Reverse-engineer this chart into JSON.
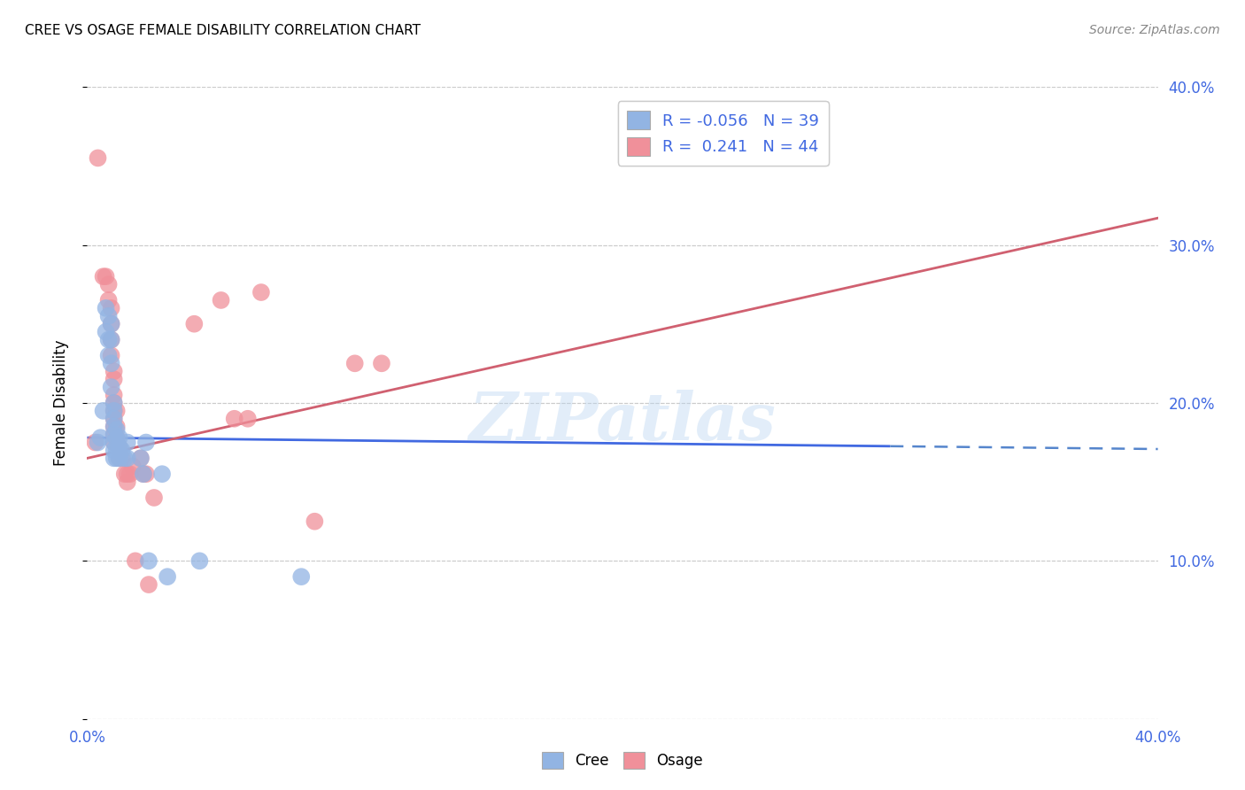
{
  "title": "CREE VS OSAGE FEMALE DISABILITY CORRELATION CHART",
  "source": "Source: ZipAtlas.com",
  "ylabel": "Female Disability",
  "xlim": [
    0.0,
    0.4
  ],
  "ylim": [
    0.0,
    0.4
  ],
  "xtick_vals": [
    0.0,
    0.1,
    0.2,
    0.3,
    0.4
  ],
  "xtick_labels": [
    "0.0%",
    "",
    "",
    "",
    "40.0%"
  ],
  "ytick_vals": [
    0.0,
    0.1,
    0.2,
    0.3,
    0.4
  ],
  "ytick_labels_right": [
    "",
    "10.0%",
    "20.0%",
    "30.0%",
    "40.0%"
  ],
  "cree_color": "#92b4e3",
  "osage_color": "#f0909a",
  "cree_R": -0.056,
  "cree_N": 39,
  "osage_R": 0.241,
  "osage_N": 44,
  "watermark": "ZIPatlas",
  "cree_line": {
    "x0": 0.0,
    "y0": 0.178,
    "x1_solid": 0.3,
    "x2_dash": 0.4,
    "slope": -0.018
  },
  "osage_line": {
    "x0": 0.0,
    "y0": 0.165,
    "x1": 0.4,
    "slope": 0.38
  },
  "cree_scatter": [
    [
      0.004,
      0.175
    ],
    [
      0.005,
      0.178
    ],
    [
      0.006,
      0.195
    ],
    [
      0.007,
      0.26
    ],
    [
      0.007,
      0.245
    ],
    [
      0.008,
      0.255
    ],
    [
      0.008,
      0.24
    ],
    [
      0.008,
      0.23
    ],
    [
      0.009,
      0.25
    ],
    [
      0.009,
      0.24
    ],
    [
      0.009,
      0.225
    ],
    [
      0.009,
      0.21
    ],
    [
      0.01,
      0.2
    ],
    [
      0.01,
      0.195
    ],
    [
      0.01,
      0.19
    ],
    [
      0.01,
      0.185
    ],
    [
      0.01,
      0.18
    ],
    [
      0.01,
      0.175
    ],
    [
      0.01,
      0.17
    ],
    [
      0.01,
      0.165
    ],
    [
      0.011,
      0.183
    ],
    [
      0.011,
      0.177
    ],
    [
      0.011,
      0.17
    ],
    [
      0.011,
      0.165
    ],
    [
      0.012,
      0.178
    ],
    [
      0.012,
      0.172
    ],
    [
      0.012,
      0.165
    ],
    [
      0.013,
      0.17
    ],
    [
      0.014,
      0.165
    ],
    [
      0.015,
      0.175
    ],
    [
      0.015,
      0.165
    ],
    [
      0.02,
      0.165
    ],
    [
      0.021,
      0.155
    ],
    [
      0.022,
      0.175
    ],
    [
      0.023,
      0.1
    ],
    [
      0.028,
      0.155
    ],
    [
      0.03,
      0.09
    ],
    [
      0.042,
      0.1
    ],
    [
      0.08,
      0.09
    ]
  ],
  "osage_scatter": [
    [
      0.003,
      0.175
    ],
    [
      0.004,
      0.355
    ],
    [
      0.006,
      0.28
    ],
    [
      0.007,
      0.28
    ],
    [
      0.008,
      0.275
    ],
    [
      0.008,
      0.265
    ],
    [
      0.009,
      0.26
    ],
    [
      0.009,
      0.25
    ],
    [
      0.009,
      0.24
    ],
    [
      0.009,
      0.23
    ],
    [
      0.01,
      0.22
    ],
    [
      0.01,
      0.215
    ],
    [
      0.01,
      0.205
    ],
    [
      0.01,
      0.2
    ],
    [
      0.01,
      0.195
    ],
    [
      0.01,
      0.19
    ],
    [
      0.01,
      0.185
    ],
    [
      0.01,
      0.18
    ],
    [
      0.01,
      0.175
    ],
    [
      0.011,
      0.195
    ],
    [
      0.011,
      0.185
    ],
    [
      0.011,
      0.178
    ],
    [
      0.012,
      0.172
    ],
    [
      0.012,
      0.165
    ],
    [
      0.013,
      0.165
    ],
    [
      0.014,
      0.155
    ],
    [
      0.015,
      0.155
    ],
    [
      0.015,
      0.15
    ],
    [
      0.016,
      0.155
    ],
    [
      0.017,
      0.16
    ],
    [
      0.018,
      0.1
    ],
    [
      0.02,
      0.165
    ],
    [
      0.021,
      0.155
    ],
    [
      0.022,
      0.155
    ],
    [
      0.023,
      0.085
    ],
    [
      0.025,
      0.14
    ],
    [
      0.04,
      0.25
    ],
    [
      0.05,
      0.265
    ],
    [
      0.055,
      0.19
    ],
    [
      0.06,
      0.19
    ],
    [
      0.065,
      0.27
    ],
    [
      0.085,
      0.125
    ],
    [
      0.1,
      0.225
    ],
    [
      0.11,
      0.225
    ]
  ]
}
